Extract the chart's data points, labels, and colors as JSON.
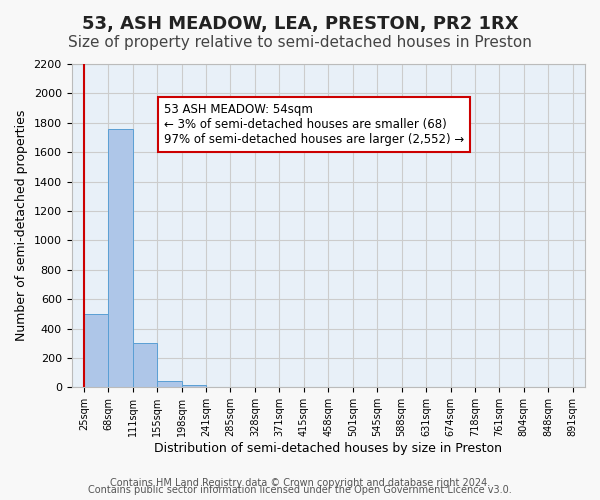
{
  "title": "53, ASH MEADOW, LEA, PRESTON, PR2 1RX",
  "subtitle": "Size of property relative to semi-detached houses in Preston",
  "xlabel": "Distribution of semi-detached houses by size in Preston",
  "ylabel": "Number of semi-detached properties",
  "footnote1": "Contains HM Land Registry data © Crown copyright and database right 2024.",
  "footnote2": "Contains public sector information licensed under the Open Government Licence v3.0.",
  "bin_labels": [
    "25sqm",
    "68sqm",
    "111sqm",
    "155sqm",
    "198sqm",
    "241sqm",
    "285sqm",
    "328sqm",
    "371sqm",
    "415sqm",
    "458sqm",
    "501sqm",
    "545sqm",
    "588sqm",
    "631sqm",
    "674sqm",
    "718sqm",
    "761sqm",
    "804sqm",
    "848sqm",
    "891sqm"
  ],
  "bar_values": [
    500,
    1760,
    305,
    45,
    15,
    5,
    2,
    0,
    0,
    0,
    0,
    0,
    0,
    0,
    0,
    0,
    0,
    0,
    0,
    0
  ],
  "bar_color": "#aec6e8",
  "bar_edge_color": "#5a9fd4",
  "annotation_title": "53 ASH MEADOW: 54sqm",
  "annotation_line1": "← 3% of semi-detached houses are smaller (68)",
  "annotation_line2": "97% of semi-detached houses are larger (2,552) →",
  "annotation_box_edge_color": "#cc0000",
  "red_line_color": "#cc0000",
  "ylim": [
    0,
    2200
  ],
  "yticks": [
    0,
    200,
    400,
    600,
    800,
    1000,
    1200,
    1400,
    1600,
    1800,
    2000,
    2200
  ],
  "grid_color": "#cccccc",
  "background_color": "#e8f0f8",
  "title_fontsize": 13,
  "subtitle_fontsize": 11,
  "axis_label_fontsize": 9,
  "tick_fontsize": 8,
  "footnote_fontsize": 7
}
